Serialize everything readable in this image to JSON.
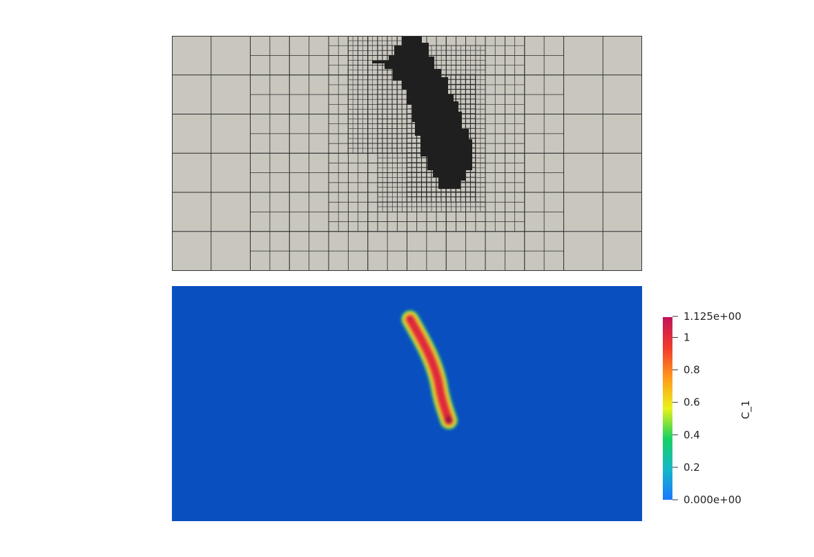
{
  "mesh_view": {
    "surface_color": "#c8c6bd",
    "edge_color": "#2a2a2a",
    "refined_color": "#1f1f1f"
  },
  "field_view": {
    "background_color": "#0a4fbf",
    "crack_color": "#e02a3a"
  },
  "colorbar": {
    "title": "C_1",
    "max_label": "1.125e+00",
    "min_label": "0.000e+00",
    "ticks": [
      {
        "value": 1.0,
        "label": "1"
      },
      {
        "value": 0.8,
        "label": "0.8"
      },
      {
        "value": 0.6,
        "label": "0.6"
      },
      {
        "value": 0.4,
        "label": "0.4"
      },
      {
        "value": 0.2,
        "label": "0.2"
      }
    ],
    "range": [
      0,
      1.125
    ],
    "colors": [
      "#1c78ff",
      "#15b7c8",
      "#16d162",
      "#e8f21a",
      "#ff9a1a",
      "#f23a2e",
      "#c0145a"
    ]
  }
}
